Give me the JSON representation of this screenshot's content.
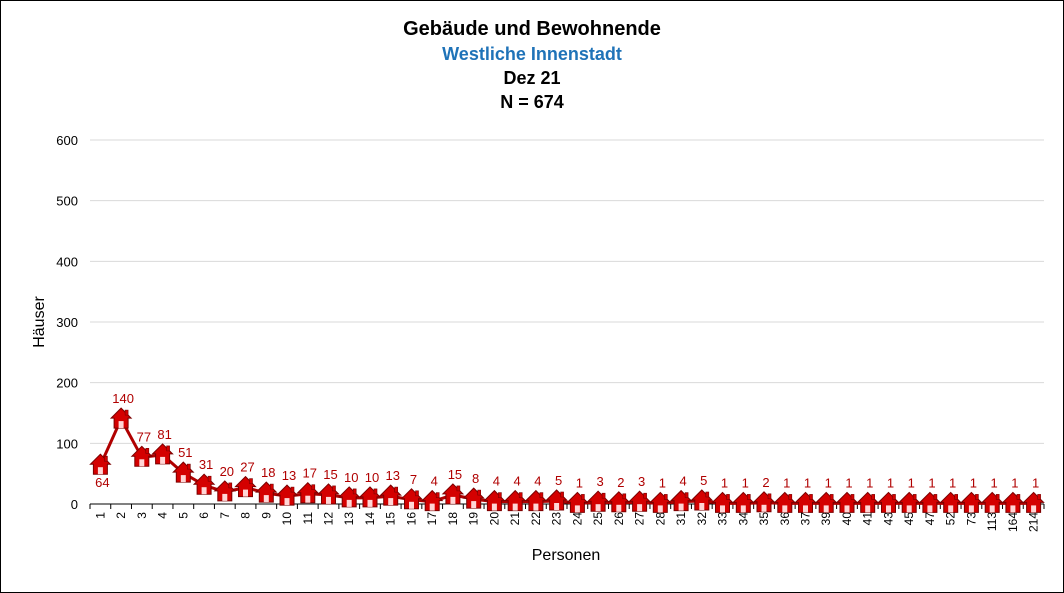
{
  "chart_data": {
    "type": "line",
    "title": "Gebäude und Bewohnende",
    "subtitle": "Westliche Innenstadt",
    "date": "Dez 21",
    "n_label": "N = 674",
    "xlabel": "Personen",
    "ylabel": "Häuser",
    "ylim": [
      0,
      600
    ],
    "yticks": [
      0,
      100,
      200,
      300,
      400,
      500,
      600
    ],
    "grid": true,
    "colors": {
      "line": "#b00000",
      "marker": "#d40000",
      "label": "#b00000",
      "subtitle": "#1f73b8"
    },
    "marker_icon": "house-icon",
    "categories": [
      "1",
      "2",
      "3",
      "4",
      "5",
      "6",
      "7",
      "8",
      "9",
      "10",
      "11",
      "12",
      "13",
      "14",
      "15",
      "16",
      "17",
      "18",
      "19",
      "20",
      "21",
      "22",
      "23",
      "24",
      "25",
      "26",
      "27",
      "28",
      "31",
      "32",
      "33",
      "34",
      "35",
      "36",
      "37",
      "39",
      "40",
      "41",
      "43",
      "45",
      "47",
      "52",
      "73",
      "113",
      "164",
      "214"
    ],
    "values": [
      64,
      140,
      77,
      81,
      51,
      31,
      20,
      27,
      18,
      13,
      17,
      15,
      10,
      10,
      13,
      7,
      4,
      15,
      8,
      4,
      4,
      4,
      5,
      1,
      3,
      2,
      3,
      1,
      4,
      5,
      1,
      1,
      2,
      1,
      1,
      1,
      1,
      1,
      1,
      1,
      1,
      1,
      1,
      1,
      1,
      1
    ]
  }
}
